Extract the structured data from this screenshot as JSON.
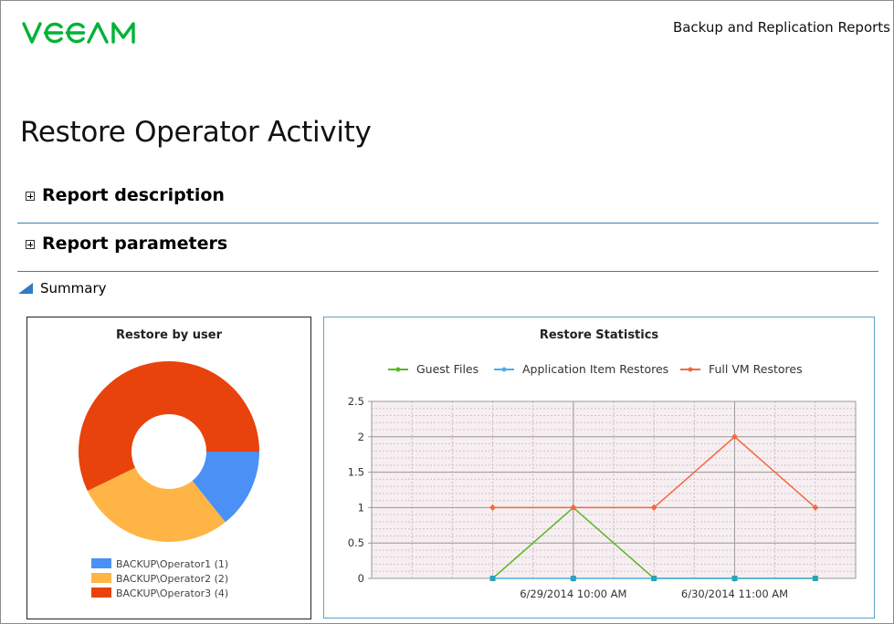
{
  "header": {
    "logo_text": "veeam",
    "report_category": "Backup and Replication Reports"
  },
  "page": {
    "title": "Restore Operator Activity"
  },
  "sections": [
    {
      "label": "Report description",
      "expanded": false
    },
    {
      "label": "Report parameters",
      "expanded": false
    }
  ],
  "summary": {
    "label": "Summary",
    "expanded": true
  },
  "colors": {
    "brand_green": "#00b336",
    "divider_blue": "#3d7fb1",
    "op1": "#4a90f5",
    "op2": "#ffb545",
    "op3": "#e8430c",
    "guest_files": "#5bb82a",
    "app_item": "#4aaee8",
    "full_vm": "#f06a3e"
  },
  "chart_data": [
    {
      "type": "pie",
      "title": "Restore by user",
      "donut": true,
      "categories": [
        "BACKUP\\Operator1 (1)",
        "BACKUP\\Operator2 (2)",
        "BACKUP\\Operator3 (4)"
      ],
      "values": [
        1,
        2,
        4
      ],
      "colors": [
        "#4a90f5",
        "#ffb545",
        "#e8430c"
      ],
      "legend_placement": "bottom"
    },
    {
      "type": "line",
      "title": "Restore Statistics",
      "x_tick_labels": [
        "6/29/2014 10:00 AM",
        "6/30/2014 11:00 AM"
      ],
      "ylim": [
        0,
        2.5
      ],
      "y_ticks": [
        "0",
        "0.5",
        "1",
        "1.5",
        "2",
        "2.5"
      ],
      "grid": true,
      "legend_placement": "top",
      "series": [
        {
          "name": "Guest Files",
          "color": "#5bb82a",
          "values": [
            0,
            1,
            0,
            0,
            0
          ]
        },
        {
          "name": "Application Item Restores",
          "color": "#4aaee8",
          "values": [
            0,
            0,
            0,
            0,
            0
          ]
        },
        {
          "name": "Full VM Restores",
          "color": "#f06a3e",
          "values": [
            1,
            1,
            1,
            2,
            1
          ]
        }
      ]
    }
  ]
}
